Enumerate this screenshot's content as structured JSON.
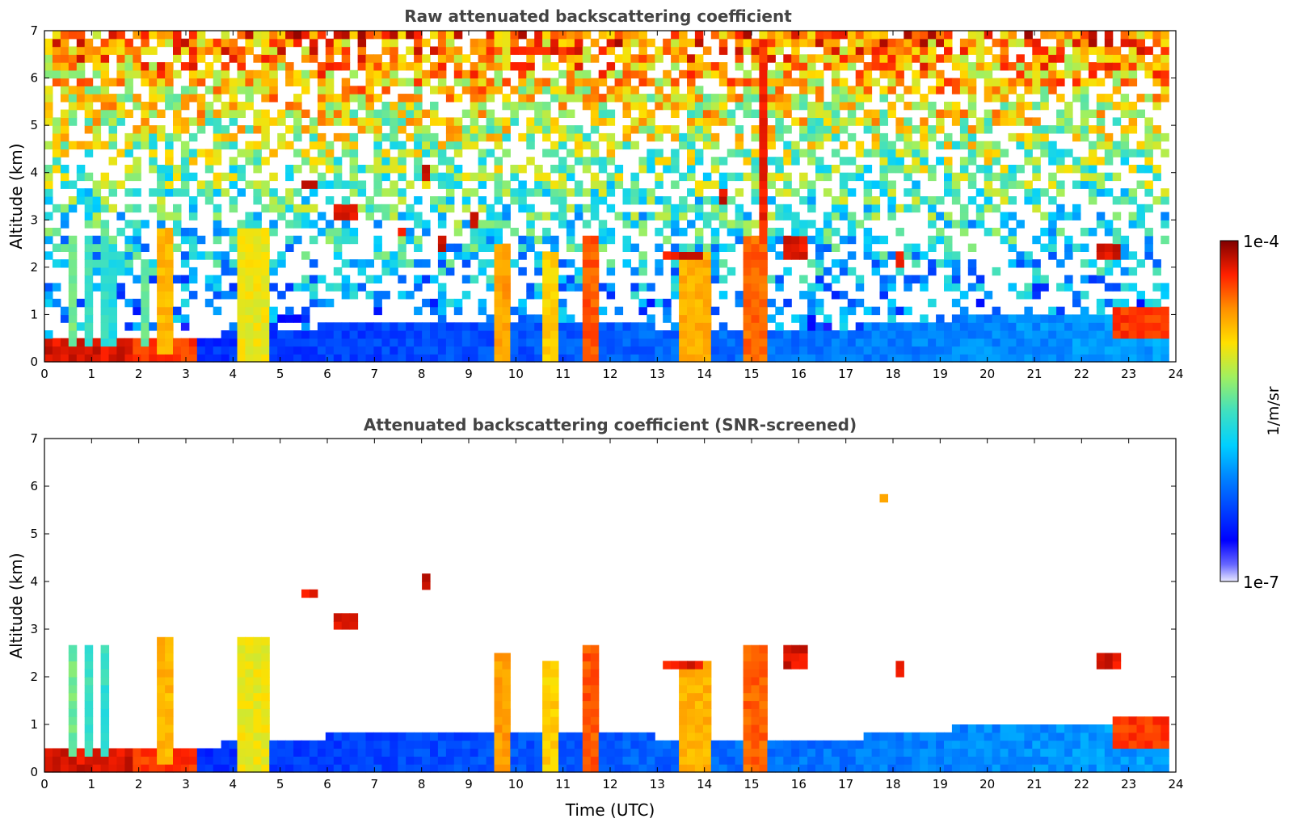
{
  "chart_data": [
    {
      "type": "heatmap",
      "title": "Raw attenuated backscattering coefficient",
      "xlabel": "",
      "ylabel": "Altitude (km)",
      "xlim": [
        0,
        24
      ],
      "ylim": [
        0,
        7
      ],
      "x_ticks": [
        "0",
        "1",
        "2",
        "3",
        "4",
        "5",
        "6",
        "7",
        "8",
        "9",
        "10",
        "11",
        "12",
        "13",
        "14",
        "15",
        "16",
        "17",
        "18",
        "19",
        "20",
        "21",
        "22",
        "23",
        "24"
      ],
      "y_ticks": [
        "0",
        "1",
        "2",
        "3",
        "4",
        "5",
        "6",
        "7"
      ],
      "background": "noisy",
      "aerosol_layer_top": [
        [
          0,
          0.55
        ],
        [
          2,
          0.5
        ],
        [
          4,
          0.6
        ],
        [
          6,
          0.75
        ],
        [
          8,
          0.8
        ],
        [
          10,
          0.85
        ],
        [
          12,
          0.8
        ],
        [
          14,
          0.7
        ],
        [
          16,
          0.65
        ],
        [
          18,
          0.8
        ],
        [
          20,
          1.0
        ],
        [
          22,
          1.05
        ],
        [
          23.8,
          1.1
        ]
      ],
      "clouds": [
        {
          "x0": 0.0,
          "x1": 1.85,
          "y0": 0,
          "y1": 0.5,
          "level": 0.93
        },
        {
          "x0": 0.45,
          "x1": 0.65,
          "y0": 0.4,
          "y1": 2.7,
          "level": 0.55
        },
        {
          "x0": 0.8,
          "x1": 0.95,
          "y0": 0.4,
          "y1": 2.6,
          "level": 0.5
        },
        {
          "x0": 1.15,
          "x1": 1.3,
          "y0": 0.4,
          "y1": 2.6,
          "level": 0.48
        },
        {
          "x0": 1.4,
          "x1": 1.5,
          "y0": 0.4,
          "y1": 2.5,
          "level": 0.45
        },
        {
          "x0": 1.9,
          "x1": 3.2,
          "y0": 0,
          "y1": 0.45,
          "level": 0.88
        },
        {
          "x0": 2.35,
          "x1": 2.75,
          "y0": 0.2,
          "y1": 2.8,
          "level": 0.75
        },
        {
          "x0": 2.0,
          "x1": 2.2,
          "y0": 0.3,
          "y1": 2.2,
          "level": 0.55
        },
        {
          "x0": 4.15,
          "x1": 4.7,
          "y0": 0,
          "y1": 2.9,
          "level": 0.68
        },
        {
          "x0": 4.7,
          "x1": 4.85,
          "y0": 0,
          "y1": 1.8,
          "level": 0.5
        },
        {
          "x0": 9.5,
          "x1": 9.9,
          "y0": 0,
          "y1": 2.5,
          "level": 0.78
        },
        {
          "x0": 10.55,
          "x1": 10.85,
          "y0": 0,
          "y1": 2.4,
          "level": 0.72
        },
        {
          "x0": 11.35,
          "x1": 11.8,
          "y0": 0,
          "y1": 2.6,
          "level": 0.85
        },
        {
          "x0": 13.45,
          "x1": 14.2,
          "y0": 0,
          "y1": 2.35,
          "level": 0.76
        },
        {
          "x0": 13.1,
          "x1": 14.0,
          "y0": 2.1,
          "y1": 2.4,
          "level": 0.92
        },
        {
          "x0": 14.85,
          "x1": 15.3,
          "y0": 0,
          "y1": 2.6,
          "level": 0.84
        },
        {
          "x0": 15.15,
          "x1": 15.3,
          "y0": 2.5,
          "y1": 6.9,
          "level": 0.9
        },
        {
          "x0": 22.6,
          "x1": 23.85,
          "y0": 0.5,
          "y1": 1.1,
          "level": 0.88
        },
        {
          "x0": 5.5,
          "x1": 5.8,
          "y0": 3.6,
          "y1": 3.8,
          "level": 0.93
        },
        {
          "x0": 6.1,
          "x1": 6.7,
          "y0": 3.0,
          "y1": 3.3,
          "level": 0.93
        },
        {
          "x0": 8.05,
          "x1": 8.2,
          "y0": 3.9,
          "y1": 4.2,
          "level": 0.93
        },
        {
          "x0": 7.5,
          "x1": 7.6,
          "y0": 2.7,
          "y1": 2.9,
          "level": 0.93
        },
        {
          "x0": 8.35,
          "x1": 8.5,
          "y0": 2.4,
          "y1": 2.7,
          "level": 0.93
        },
        {
          "x0": 9.05,
          "x1": 9.15,
          "y0": 2.8,
          "y1": 3.1,
          "level": 0.93
        },
        {
          "x0": 14.3,
          "x1": 14.45,
          "y0": 3.3,
          "y1": 3.7,
          "level": 0.93
        },
        {
          "x0": 15.7,
          "x1": 16.1,
          "y0": 2.2,
          "y1": 2.6,
          "level": 0.93
        },
        {
          "x0": 18.0,
          "x1": 18.2,
          "y0": 2.0,
          "y1": 2.4,
          "level": 0.93
        },
        {
          "x0": 22.4,
          "x1": 22.8,
          "y0": 2.2,
          "y1": 2.5,
          "level": 0.93
        }
      ]
    },
    {
      "type": "heatmap",
      "title": "Attenuated backscattering coefficient (SNR-screened)",
      "xlabel": "Time (UTC)",
      "ylabel": "Altitude (km)",
      "xlim": [
        0,
        24
      ],
      "ylim": [
        0,
        7
      ],
      "x_ticks": [
        "0",
        "1",
        "2",
        "3",
        "4",
        "5",
        "6",
        "7",
        "8",
        "9",
        "10",
        "11",
        "12",
        "13",
        "14",
        "15",
        "16",
        "17",
        "18",
        "19",
        "20",
        "21",
        "22",
        "23",
        "24"
      ],
      "y_ticks": [
        "0",
        "1",
        "2",
        "3",
        "4",
        "5",
        "6",
        "7"
      ],
      "background": "screened",
      "aerosol_layer_top": [
        [
          0,
          0.55
        ],
        [
          2,
          0.5
        ],
        [
          4,
          0.6
        ],
        [
          6,
          0.75
        ],
        [
          8,
          0.8
        ],
        [
          10,
          0.85
        ],
        [
          12,
          0.8
        ],
        [
          14,
          0.7
        ],
        [
          16,
          0.65
        ],
        [
          18,
          0.8
        ],
        [
          20,
          1.0
        ],
        [
          22,
          1.05
        ],
        [
          23.8,
          1.1
        ]
      ],
      "clouds": [
        {
          "x0": 0.0,
          "x1": 1.85,
          "y0": 0,
          "y1": 0.5,
          "level": 0.93
        },
        {
          "x0": 0.45,
          "x1": 0.65,
          "y0": 0.4,
          "y1": 2.7,
          "level": 0.55
        },
        {
          "x0": 0.8,
          "x1": 0.95,
          "y0": 0.4,
          "y1": 2.6,
          "level": 0.5
        },
        {
          "x0": 1.15,
          "x1": 1.3,
          "y0": 0.4,
          "y1": 2.6,
          "level": 0.48
        },
        {
          "x0": 1.9,
          "x1": 3.2,
          "y0": 0,
          "y1": 0.45,
          "level": 0.88
        },
        {
          "x0": 2.35,
          "x1": 2.75,
          "y0": 0.2,
          "y1": 2.8,
          "level": 0.75
        },
        {
          "x0": 4.15,
          "x1": 4.7,
          "y0": 0,
          "y1": 2.9,
          "level": 0.68
        },
        {
          "x0": 9.5,
          "x1": 9.9,
          "y0": 0,
          "y1": 2.5,
          "level": 0.78
        },
        {
          "x0": 10.55,
          "x1": 10.85,
          "y0": 0,
          "y1": 2.4,
          "level": 0.72
        },
        {
          "x0": 11.35,
          "x1": 11.8,
          "y0": 0,
          "y1": 2.6,
          "level": 0.85
        },
        {
          "x0": 13.45,
          "x1": 14.2,
          "y0": 0,
          "y1": 2.35,
          "level": 0.76
        },
        {
          "x0": 13.1,
          "x1": 14.0,
          "y0": 2.1,
          "y1": 2.4,
          "level": 0.92
        },
        {
          "x0": 14.85,
          "x1": 15.3,
          "y0": 0,
          "y1": 2.6,
          "level": 0.84
        },
        {
          "x0": 22.6,
          "x1": 23.85,
          "y0": 0.5,
          "y1": 1.1,
          "level": 0.88
        },
        {
          "x0": 5.5,
          "x1": 5.8,
          "y0": 3.6,
          "y1": 3.8,
          "level": 0.93
        },
        {
          "x0": 6.1,
          "x1": 6.7,
          "y0": 3.0,
          "y1": 3.3,
          "level": 0.93
        },
        {
          "x0": 8.05,
          "x1": 8.2,
          "y0": 3.9,
          "y1": 4.2,
          "level": 0.93
        },
        {
          "x0": 17.75,
          "x1": 17.85,
          "y0": 5.6,
          "y1": 5.9,
          "level": 0.8
        },
        {
          "x0": 15.7,
          "x1": 16.1,
          "y0": 2.2,
          "y1": 2.6,
          "level": 0.93
        },
        {
          "x0": 18.0,
          "x1": 18.2,
          "y0": 2.0,
          "y1": 2.4,
          "level": 0.93
        },
        {
          "x0": 22.4,
          "x1": 22.8,
          "y0": 2.2,
          "y1": 2.5,
          "level": 0.93
        }
      ]
    }
  ],
  "colorbar": {
    "max_label": "1e-4",
    "min_label": "1e-7",
    "unit_label": "1/m/sr",
    "scale": "log"
  }
}
